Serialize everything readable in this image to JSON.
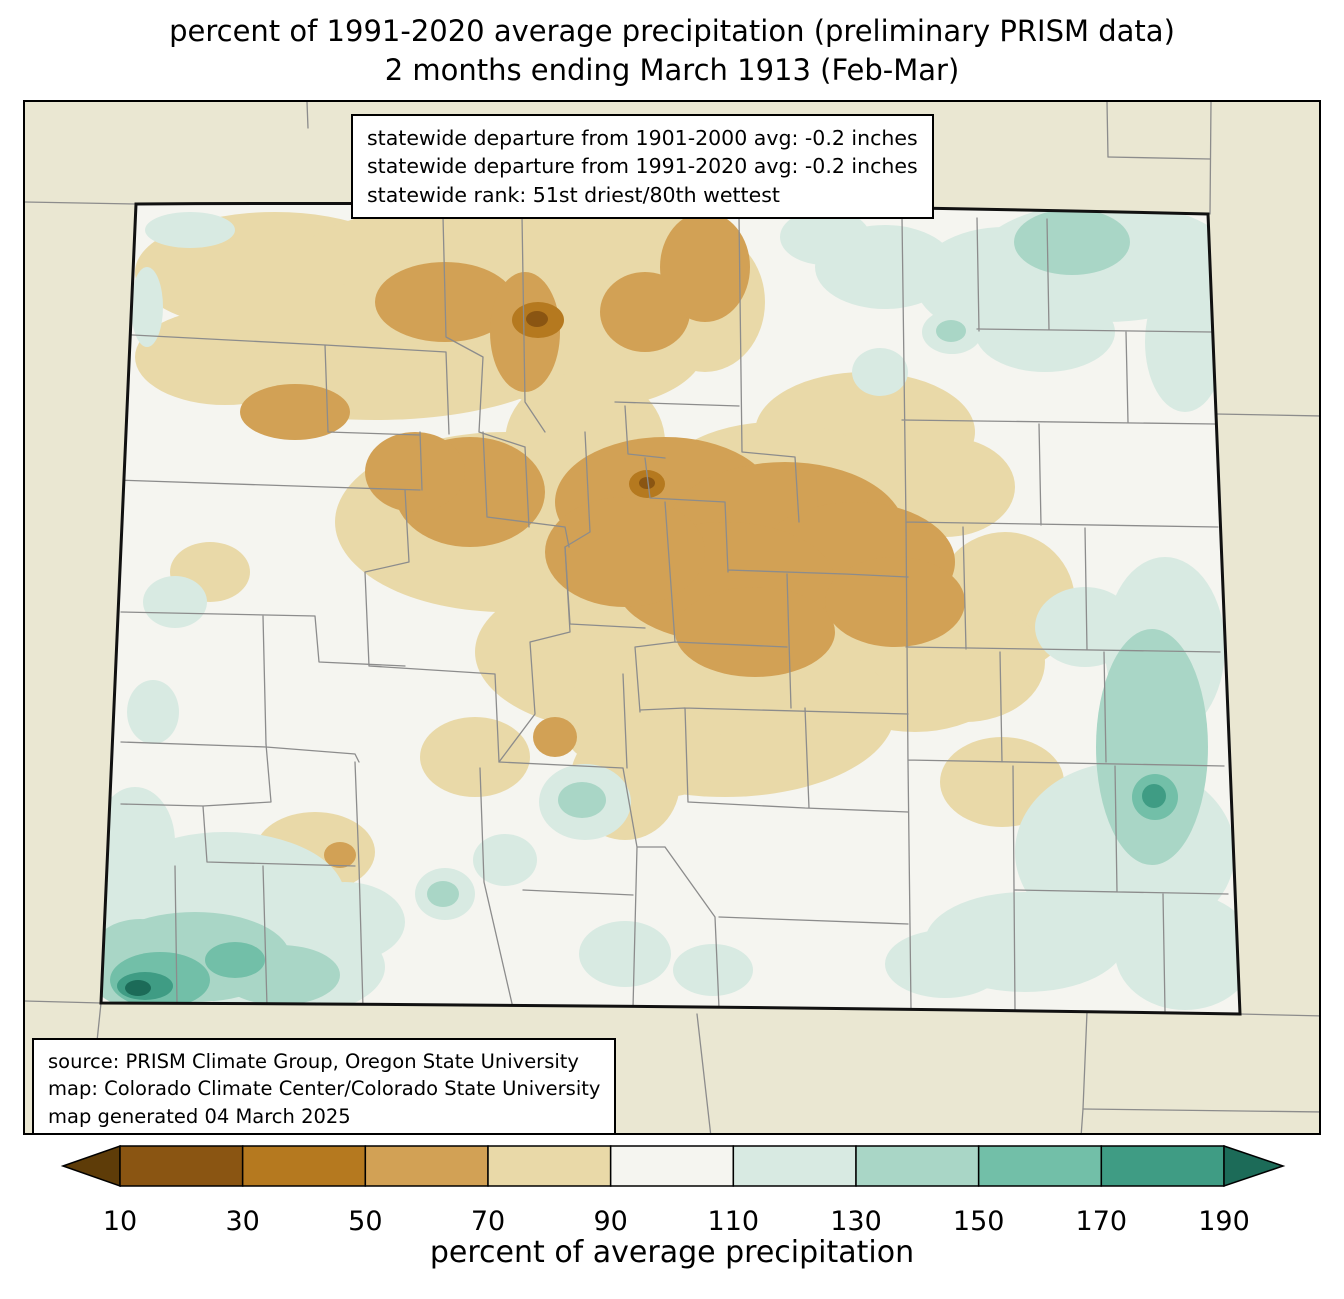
{
  "title": {
    "line1": "percent of 1991-2020 average precipitation (preliminary PRISM data)",
    "line2": "2 months ending March 1913 (Feb-Mar)"
  },
  "stats_box": {
    "lines": [
      "statewide departure from 1901-2000 avg: -0.2 inches",
      "statewide departure from 1991-2020 avg: -0.2 inches",
      "statewide rank: 51st driest/80th wettest"
    ]
  },
  "source_box": {
    "lines": [
      "source: PRISM Climate Group, Oregon State University",
      "map: Colorado Climate Center/Colorado State University",
      "map generated 04 March 2025"
    ]
  },
  "colorbar": {
    "title": "percent of average precipitation",
    "ticks": [
      "10",
      "30",
      "50",
      "70",
      "90",
      "110",
      "130",
      "150",
      "170",
      "190"
    ],
    "segment_colors": [
      "#8a5512",
      "#b5791f",
      "#d2a155",
      "#e9d9a8",
      "#f5f5f0",
      "#d8eae2",
      "#a9d6c6",
      "#72bfa8",
      "#3f9c84"
    ],
    "arrow_left_color": "#5e3c08",
    "arrow_right_color": "#1c6b58"
  },
  "colors": {
    "bg_outside": "#eae7d2",
    "c_lt10": "#5e3c08",
    "c10_30": "#8a5512",
    "c30_50": "#b5791f",
    "c50_70": "#d2a155",
    "c70_90": "#e9d9a8",
    "c90_110": "#f5f5f0",
    "c110_130": "#d8eae2",
    "c130_150": "#a9d6c6",
    "c150_170": "#72bfa8",
    "c170_190": "#3f9c84",
    "c_gt190": "#1c6b58",
    "county_line": "#8c8c8c",
    "neighbor_line": "#8c8c8c",
    "state_border": "#111111"
  },
  "chart_data": {
    "type": "heatmap",
    "title": "percent of 1991-2020 average precipitation (preliminary PRISM data), 2 months ending March 1913 (Feb-Mar)",
    "region": "Colorado",
    "colorbar_label": "percent of average precipitation",
    "colorbar_ticks": [
      10,
      30,
      50,
      70,
      90,
      110,
      130,
      150,
      170,
      190
    ],
    "statewide_departure_from_1901_2000_avg_inches": -0.2,
    "statewide_departure_from_1991_2020_avg_inches": -0.2,
    "statewide_rank": "51st driest/80th wettest"
  }
}
